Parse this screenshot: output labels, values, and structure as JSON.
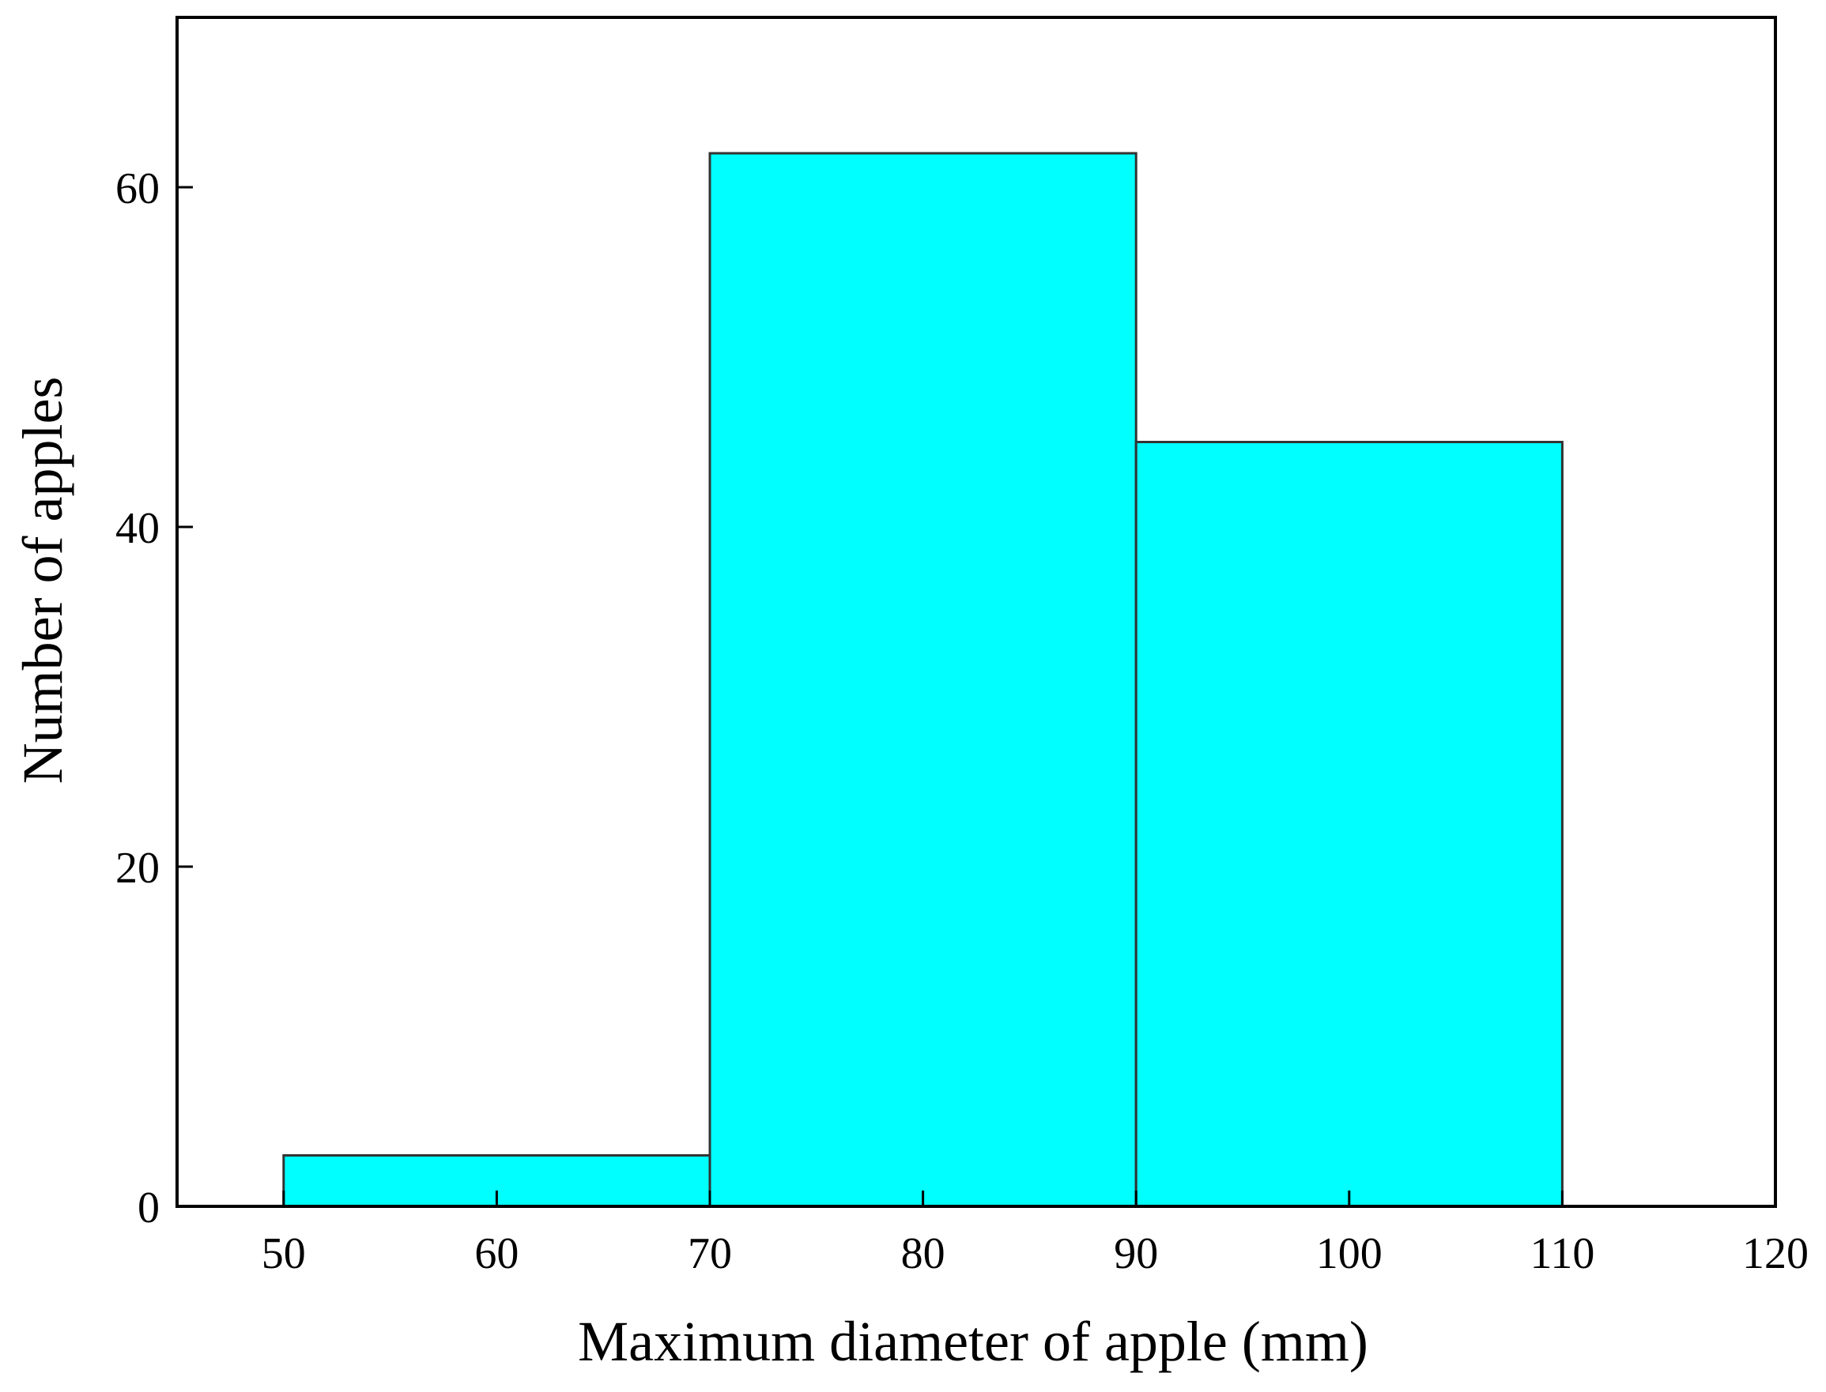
{
  "chart_data": {
    "type": "bar",
    "subtype": "histogram",
    "bins": [
      {
        "start": 50,
        "end": 70,
        "count": 3
      },
      {
        "start": 70,
        "end": 90,
        "count": 62
      },
      {
        "start": 90,
        "end": 110,
        "count": 45
      }
    ],
    "xlabel": "Maximum diameter of apple (mm)",
    "ylabel": "Number of apples",
    "xlim": [
      45,
      120
    ],
    "ylim": [
      0,
      70
    ],
    "xticks": [
      50,
      60,
      70,
      80,
      90,
      100,
      110,
      120
    ],
    "yticks": [
      0,
      20,
      40,
      60
    ],
    "grid": false,
    "bar_color": "#00FFFF",
    "bar_edge_color": "#333333"
  }
}
